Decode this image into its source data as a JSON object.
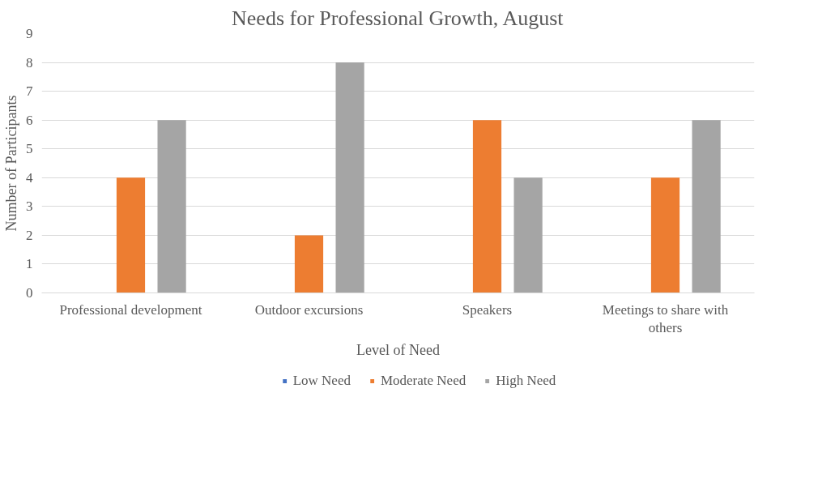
{
  "chart_data": {
    "type": "bar",
    "title": "Needs for Professional Growth, August",
    "xlabel": "Level of Need",
    "ylabel": "Number of Participants",
    "categories": [
      "Professional development",
      "Outdoor excursions",
      "Speakers",
      "Meetings to share with others"
    ],
    "series": [
      {
        "name": "Low Need",
        "color": "#4472c4",
        "values": [
          0,
          0,
          0,
          0
        ]
      },
      {
        "name": "Moderate Need",
        "color": "#ed7d31",
        "values": [
          4,
          2,
          6,
          4
        ]
      },
      {
        "name": "High Need",
        "color": "#a5a5a5",
        "values": [
          6,
          8,
          4,
          6
        ]
      }
    ],
    "ylim": [
      0,
      9
    ],
    "yticks": [
      0,
      1,
      2,
      3,
      4,
      5,
      6,
      7,
      8,
      9
    ],
    "grid": "y",
    "legend": "bottom"
  }
}
